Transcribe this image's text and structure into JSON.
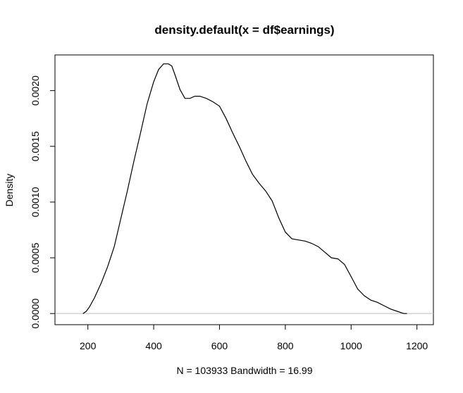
{
  "chart_data": {
    "type": "line",
    "title": "density.default(x = df$earnings)",
    "xlabel": "N = 103933   Bandwidth = 16.99",
    "ylabel": "Density",
    "xlim": [
      100,
      1250
    ],
    "ylim": [
      -0.0001,
      0.00232
    ],
    "x_ticks": [
      200,
      400,
      600,
      800,
      1000,
      1200
    ],
    "x_tick_labels": [
      "200",
      "400",
      "600",
      "800",
      "1000",
      "1200"
    ],
    "y_ticks": [
      0.0,
      0.0005,
      0.001,
      0.0015,
      0.002
    ],
    "y_tick_labels": [
      "0.0000",
      "0.0005",
      "0.0010",
      "0.0015",
      "0.0020"
    ],
    "baseline": 0,
    "baseline_color": "#bebebe",
    "line_color": "#000000",
    "series": [
      {
        "name": "density",
        "x": [
          185,
          195,
          205,
          220,
          240,
          260,
          280,
          300,
          320,
          340,
          360,
          380,
          400,
          415,
          430,
          445,
          455,
          465,
          480,
          495,
          510,
          525,
          540,
          560,
          580,
          600,
          620,
          640,
          660,
          680,
          700,
          720,
          740,
          760,
          780,
          800,
          820,
          840,
          860,
          880,
          900,
          920,
          940,
          960,
          980,
          1000,
          1020,
          1040,
          1060,
          1080,
          1100,
          1120,
          1140,
          1160,
          1170
        ],
        "y": [
          0.0,
          2e-05,
          6e-05,
          0.00014,
          0.00027,
          0.00042,
          0.0006,
          0.00085,
          0.0011,
          0.00137,
          0.00162,
          0.00188,
          0.00208,
          0.00219,
          0.00224,
          0.00224,
          0.00222,
          0.00214,
          0.00201,
          0.00193,
          0.00193,
          0.00195,
          0.00195,
          0.00193,
          0.0019,
          0.00186,
          0.00175,
          0.00162,
          0.0015,
          0.00137,
          0.00125,
          0.00117,
          0.0011,
          0.00101,
          0.00086,
          0.00073,
          0.00067,
          0.00066,
          0.00065,
          0.00063,
          0.0006,
          0.00055,
          0.0005,
          0.00049,
          0.00044,
          0.00033,
          0.00022,
          0.00016,
          0.00012,
          0.0001,
          7e-05,
          4e-05,
          2e-05,
          0.0,
          0.0
        ]
      }
    ]
  }
}
